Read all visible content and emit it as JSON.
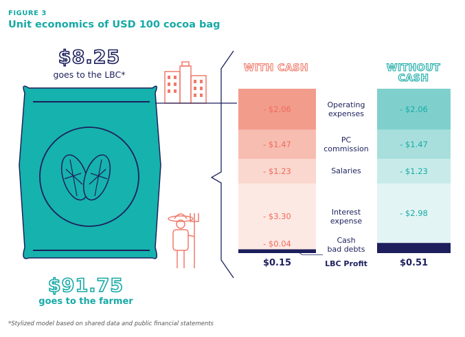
{
  "figure_label": "FIGURE 3",
  "title": "Unit economics of USD 100 cocoa bag",
  "lbc_share": {
    "amount": "$8.25",
    "text": "goes to the LBC*"
  },
  "farmer_share": {
    "amount": "$91.75",
    "text": "goes to the farmer"
  },
  "footnote": "*Stylized model based on shared data and public financial statements",
  "colors": {
    "teal": "#18aaa6",
    "navy": "#1c1f5c",
    "coral": "#ef7a6a",
    "bag": "#16b2ad"
  },
  "icons": [
    "cocoa-pod-icon",
    "building-icon",
    "farmer-icon"
  ],
  "chart_data": {
    "type": "bar",
    "stacked": true,
    "headers": {
      "with": "WITH CASH",
      "without": "WITHOUT CASH"
    },
    "categories": [
      "Operating expenses",
      "PC commission",
      "Salaries",
      "Interest expense",
      "Cash bad debts",
      "LBC Profit"
    ],
    "series": [
      {
        "name": "WITH CASH",
        "values": [
          2.06,
          1.47,
          1.23,
          3.3,
          0.04,
          0.15
        ],
        "labels": [
          "- $2.06",
          "- $1.47",
          "- $1.23",
          "- $3.30",
          "- $0.04",
          "$0.15"
        ],
        "colors": [
          "#f29c8c",
          "#f7bdb1",
          "#fad7cf",
          "#fde9e4",
          "#fde9e4",
          "#1c1f5c"
        ],
        "label_color": "#ef6b5b"
      },
      {
        "name": "WITHOUT CASH",
        "values": [
          2.06,
          1.47,
          1.23,
          2.98,
          0,
          0.51
        ],
        "labels": [
          "- $2.06",
          "- $1.47",
          "- $1.23",
          "- $2.98",
          "",
          "$0.51"
        ],
        "colors": [
          "#7fd0cc",
          "#a8dfdc",
          "#c8ebe9",
          "#e2f4f3",
          "#e2f4f3",
          "#1c1f5c"
        ],
        "label_color": "#18aaa6"
      }
    ],
    "total": 8.25
  }
}
